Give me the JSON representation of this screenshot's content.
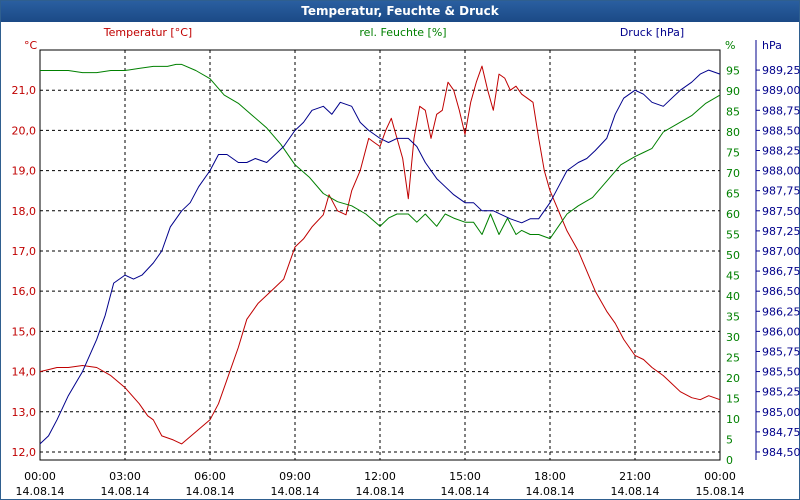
{
  "window": {
    "title": "Temperatur, Feuchte & Druck"
  },
  "colors": {
    "temperature": "#c00000",
    "humidity": "#008000",
    "pressure": "#00008b",
    "grid": "#000000",
    "title_bar": "#1f4f8f"
  },
  "chart_data": {
    "type": "line",
    "title": "Temperatur, Feuchte & Druck",
    "x_ticks": [
      {
        "time": "00:00",
        "date": "14.08.14"
      },
      {
        "time": "03:00",
        "date": "14.08.14"
      },
      {
        "time": "06:00",
        "date": "14.08.14"
      },
      {
        "time": "09:00",
        "date": "14.08.14"
      },
      {
        "time": "12:00",
        "date": "14.08.14"
      },
      {
        "time": "15:00",
        "date": "14.08.14"
      },
      {
        "time": "18:00",
        "date": "14.08.14"
      },
      {
        "time": "21:00",
        "date": "14.08.14"
      },
      {
        "time": "00:00",
        "date": "15.08.14"
      }
    ],
    "xlim_hours": [
      0,
      24
    ],
    "axes": {
      "temperature": {
        "unit": "°C",
        "legend": "Temperatur [°C]",
        "ylim": [
          11.8,
          22.0
        ],
        "ticks": [
          "12,0",
          "13,0",
          "14,0",
          "15,0",
          "16,0",
          "17,0",
          "18,0",
          "19,0",
          "20,0",
          "21,0"
        ]
      },
      "humidity": {
        "unit": "%",
        "legend": "rel. Feuchte [%]",
        "ylim": [
          0,
          100
        ],
        "ticks": [
          "0",
          "5",
          "10",
          "15",
          "20",
          "25",
          "30",
          "35",
          "40",
          "45",
          "50",
          "55",
          "60",
          "65",
          "70",
          "75",
          "80",
          "85",
          "90",
          "95"
        ]
      },
      "pressure": {
        "unit": "hPa",
        "legend": "Druck [hPa]",
        "ylim": [
          984.4,
          989.5
        ],
        "ticks": [
          "984,50",
          "984,75",
          "985,00",
          "985,25",
          "985,50",
          "985,75",
          "986,00",
          "986,25",
          "986,50",
          "986,75",
          "987,00",
          "987,25",
          "987,50",
          "987,75",
          "988,00",
          "988,25",
          "988,50",
          "988,75",
          "989,00",
          "989,25"
        ]
      }
    },
    "series": [
      {
        "name": "Temperatur [°C]",
        "axis": "temperature",
        "x": [
          0,
          0.3,
          0.6,
          1,
          1.5,
          2,
          2.5,
          3,
          3.5,
          3.8,
          4,
          4.3,
          4.7,
          5,
          5.5,
          6,
          6.3,
          6.6,
          7,
          7.3,
          7.7,
          8,
          8.3,
          8.6,
          9,
          9.3,
          9.6,
          10,
          10.2,
          10.5,
          10.8,
          11,
          11.3,
          11.6,
          11.8,
          12,
          12.2,
          12.4,
          12.6,
          12.8,
          13,
          13.2,
          13.4,
          13.6,
          13.8,
          14,
          14.2,
          14.4,
          14.6,
          14.8,
          15,
          15.2,
          15.4,
          15.6,
          15.8,
          16,
          16.2,
          16.4,
          16.6,
          16.8,
          17,
          17.2,
          17.4,
          17.6,
          17.8,
          18,
          18.3,
          18.6,
          19,
          19.3,
          19.6,
          20,
          20.3,
          20.6,
          21,
          21.3,
          21.6,
          22,
          22.3,
          22.6,
          23,
          23.3,
          23.6,
          24
        ],
        "values": [
          14.0,
          14.05,
          14.1,
          14.1,
          14.15,
          14.1,
          13.9,
          13.6,
          13.2,
          12.9,
          12.8,
          12.4,
          12.3,
          12.2,
          12.5,
          12.8,
          13.2,
          13.8,
          14.6,
          15.3,
          15.7,
          15.9,
          16.1,
          16.3,
          17.1,
          17.3,
          17.6,
          17.9,
          18.4,
          18.0,
          17.9,
          18.5,
          19.0,
          19.8,
          19.7,
          19.6,
          20.0,
          20.3,
          19.8,
          19.3,
          18.3,
          19.8,
          20.6,
          20.5,
          19.8,
          20.4,
          20.5,
          21.2,
          21.0,
          20.5,
          19.9,
          20.7,
          21.2,
          21.6,
          21.0,
          20.5,
          21.4,
          21.3,
          21.0,
          21.1,
          20.9,
          20.8,
          20.7,
          19.8,
          19.0,
          18.5,
          18.0,
          17.5,
          17.0,
          16.5,
          16.0,
          15.5,
          15.2,
          14.8,
          14.4,
          14.3,
          14.1,
          13.9,
          13.7,
          13.5,
          13.35,
          13.3,
          13.4,
          13.3
        ]
      },
      {
        "name": "rel. Feuchte [%]",
        "axis": "humidity",
        "x": [
          0,
          0.5,
          1,
          1.5,
          2,
          2.5,
          3,
          3.5,
          4,
          4.5,
          4.8,
          5,
          5.5,
          6,
          6.5,
          7,
          7.5,
          8,
          8.5,
          9,
          9.5,
          10,
          10.5,
          11,
          11.5,
          12,
          12.3,
          12.6,
          13,
          13.3,
          13.6,
          14,
          14.3,
          14.6,
          15,
          15.3,
          15.6,
          15.9,
          16.2,
          16.5,
          16.8,
          17,
          17.3,
          17.6,
          18,
          18.3,
          18.6,
          19,
          19.5,
          20,
          20.5,
          21,
          21.3,
          21.6,
          22,
          22.5,
          23,
          23.5,
          24
        ],
        "values": [
          95,
          95,
          95,
          94.5,
          94.5,
          95,
          95,
          95.5,
          96,
          96,
          96.5,
          96.5,
          95,
          93,
          89,
          87,
          84,
          81,
          77,
          72,
          69,
          65,
          63,
          62,
          60,
          57,
          59,
          60,
          60,
          58,
          60,
          57,
          60,
          59,
          58,
          58,
          55,
          60,
          55,
          59,
          55,
          56,
          55,
          55,
          54,
          57,
          60,
          62,
          64,
          68,
          72,
          74,
          75,
          76,
          80,
          82,
          84,
          87,
          89
        ]
      },
      {
        "name": "Druck [hPa]",
        "axis": "pressure",
        "x": [
          0,
          0.3,
          0.6,
          1,
          1.5,
          2,
          2.3,
          2.6,
          3,
          3.3,
          3.6,
          4,
          4.3,
          4.6,
          5,
          5.3,
          5.6,
          6,
          6.3,
          6.6,
          7,
          7.3,
          7.6,
          8,
          8.3,
          8.6,
          9,
          9.3,
          9.6,
          10,
          10.3,
          10.6,
          11,
          11.3,
          11.6,
          12,
          12.3,
          12.6,
          13,
          13.3,
          13.6,
          14,
          14.3,
          14.6,
          15,
          15.3,
          15.6,
          16,
          16.3,
          16.6,
          17,
          17.3,
          17.6,
          18,
          18.3,
          18.6,
          19,
          19.3,
          19.6,
          20,
          20.3,
          20.6,
          21,
          21.3,
          21.6,
          22,
          22.3,
          22.6,
          23,
          23.3,
          23.6,
          24
        ],
        "values": [
          984.6,
          984.7,
          984.9,
          985.2,
          985.5,
          985.9,
          986.2,
          986.6,
          986.7,
          986.65,
          986.7,
          986.85,
          987.0,
          987.3,
          987.5,
          987.6,
          987.8,
          988.0,
          988.2,
          988.2,
          988.1,
          988.1,
          988.15,
          988.1,
          988.2,
          988.3,
          988.5,
          988.6,
          988.75,
          988.8,
          988.7,
          988.85,
          988.8,
          988.6,
          988.5,
          988.4,
          988.35,
          988.4,
          988.4,
          988.3,
          988.1,
          987.9,
          987.8,
          987.7,
          987.6,
          987.6,
          987.5,
          987.5,
          987.45,
          987.4,
          987.35,
          987.4,
          987.4,
          987.6,
          987.8,
          988.0,
          988.1,
          988.15,
          988.25,
          988.4,
          988.7,
          988.9,
          989.0,
          988.95,
          988.85,
          988.8,
          988.9,
          989.0,
          989.1,
          989.2,
          989.25,
          989.2
        ]
      }
    ]
  }
}
